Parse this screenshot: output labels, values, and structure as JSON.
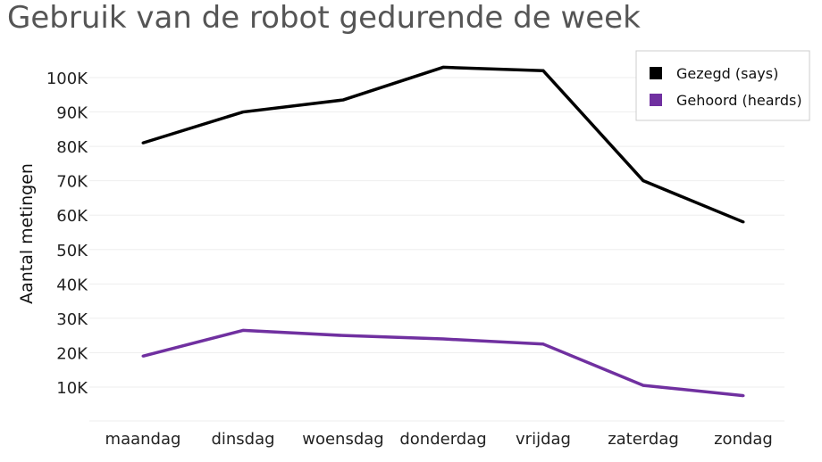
{
  "chart_data": {
    "type": "line",
    "title": "Gebruik van de robot gedurende de week",
    "xlabel": "",
    "ylabel": "Aantal metingen",
    "categories": [
      "maandag",
      "dinsdag",
      "woensdag",
      "donderdag",
      "vrijdag",
      "zaterdag",
      "zondag"
    ],
    "y_ticks": [
      10000,
      20000,
      30000,
      40000,
      50000,
      60000,
      70000,
      80000,
      90000,
      100000
    ],
    "y_tick_labels": [
      "10K",
      "20K",
      "30K",
      "40K",
      "50K",
      "60K",
      "70K",
      "80K",
      "90K",
      "100K"
    ],
    "ylim": [
      0,
      105000
    ],
    "grid": true,
    "legend_position": "top-right",
    "series": [
      {
        "name": "Gezegd (says)",
        "color": "#000000",
        "values": [
          81000,
          90000,
          93500,
          103000,
          102000,
          70000,
          58000
        ]
      },
      {
        "name": "Gehoord (heards)",
        "color": "#7030a0",
        "values": [
          19000,
          26500,
          25000,
          24000,
          22500,
          10500,
          7500
        ]
      }
    ]
  }
}
